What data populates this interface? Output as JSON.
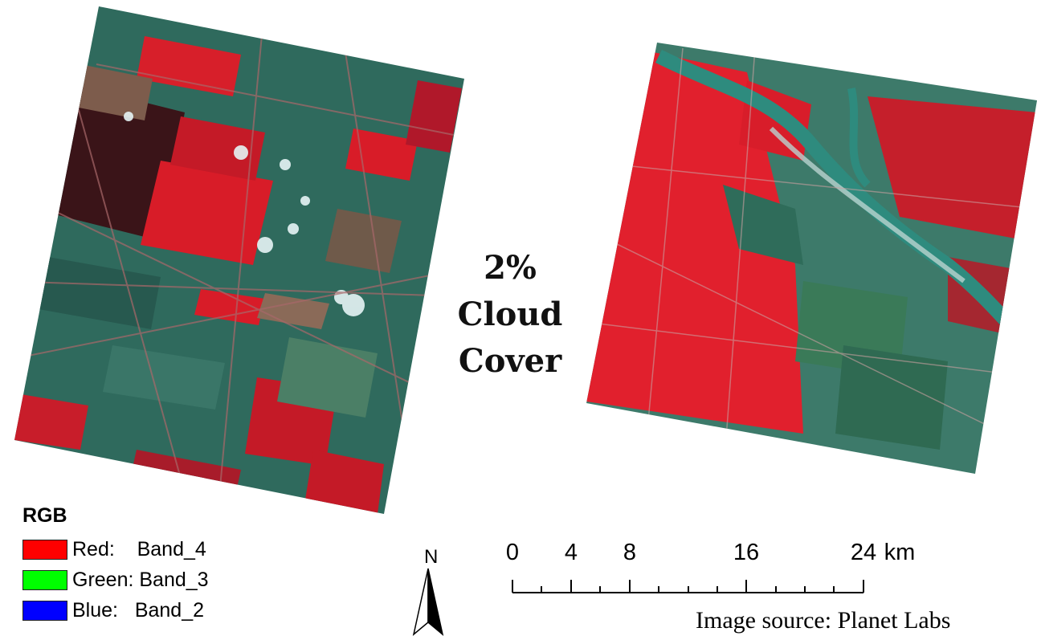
{
  "cloud_cover": {
    "lines": [
      "2%",
      "Cloud",
      "Cover"
    ]
  },
  "legend": {
    "title": "RGB",
    "items": [
      {
        "label": "Red:    Band_4",
        "color": "#ff0000"
      },
      {
        "label": "Green: Band_3",
        "color": "#00ff00"
      },
      {
        "label": "Blue:   Band_2",
        "color": "#0000ff"
      }
    ]
  },
  "north_arrow": {
    "label": "N"
  },
  "scale_bar": {
    "ticks": [
      "0",
      "4",
      "8",
      "16",
      "24"
    ],
    "unit": "km"
  },
  "source": "Image source: Planet Labs",
  "imagery": {
    "left_scene": "satellite-scene-left",
    "right_scene": "satellite-scene-right",
    "vegetation_color": "#e1202d",
    "land_color": "#3d7a6a",
    "river_color": "#2e8b7e"
  }
}
